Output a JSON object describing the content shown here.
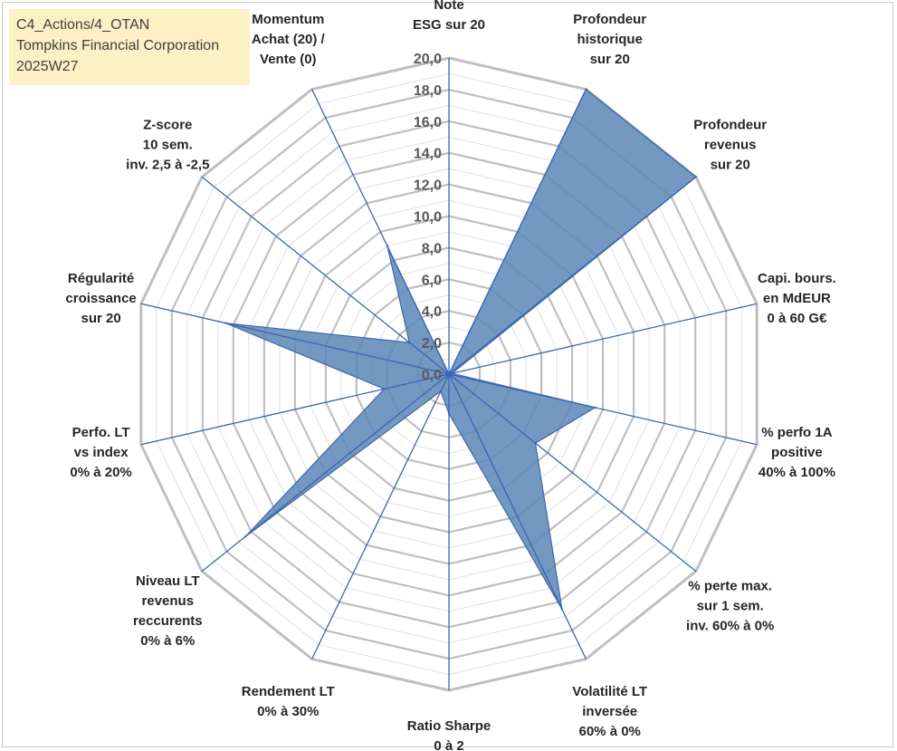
{
  "title_box": {
    "line1": "C4_Actions/4_OTAN",
    "line2": "Tompkins Financial Corporation",
    "line3": "2025W27"
  },
  "chart_data": {
    "type": "radar",
    "axes": [
      [
        "Note",
        "ESG sur 20"
      ],
      [
        "Profondeur",
        "historique",
        "sur 20"
      ],
      [
        "Profondeur",
        "revenus",
        "sur 20"
      ],
      [
        "Capi. bours.",
        "en MdEUR",
        "0 à 60 G€"
      ],
      [
        "% perfo 1A",
        "positive",
        "40% à 100%"
      ],
      [
        "% perte max.",
        "sur 1 sem.",
        "inv. 60% à 0%"
      ],
      [
        "Volatilité LT",
        "inversée",
        "60% à 0%"
      ],
      [
        "Ratio Sharpe",
        "0 à 2"
      ],
      [
        "Rendement LT",
        "0% à 30%"
      ],
      [
        "Niveau LT",
        "revenus",
        "reccurents",
        "0% à 6%"
      ],
      [
        "Perfo. LT",
        "vs index",
        "0% à 20%"
      ],
      [
        "Régularité",
        "croissance",
        "sur 20"
      ],
      [
        "Z-score",
        "10 sem.",
        "inv. 2,5 à -2,5"
      ],
      [
        "Momentum",
        "Achat (20) /",
        "Vente (0)"
      ]
    ],
    "values": [
      0.0,
      20.0,
      20.0,
      0.2,
      9.5,
      7.0,
      16.5,
      2.5,
      1.2,
      16.5,
      4.2,
      14.5,
      3.2,
      9.0
    ],
    "r_range": [
      0,
      20
    ],
    "tick_labels": [
      "0,0",
      "2,0",
      "4,0",
      "6,0",
      "8,0",
      "10,0",
      "12,0",
      "14,0",
      "16,0",
      "18,0",
      "20,0"
    ],
    "colors": {
      "fill": "#5b86b6",
      "stroke": "#3f68a8",
      "spoke": "#3a64b8",
      "grid_major": "#bfbfbf",
      "grid_minor": "#e0e0e0"
    }
  }
}
